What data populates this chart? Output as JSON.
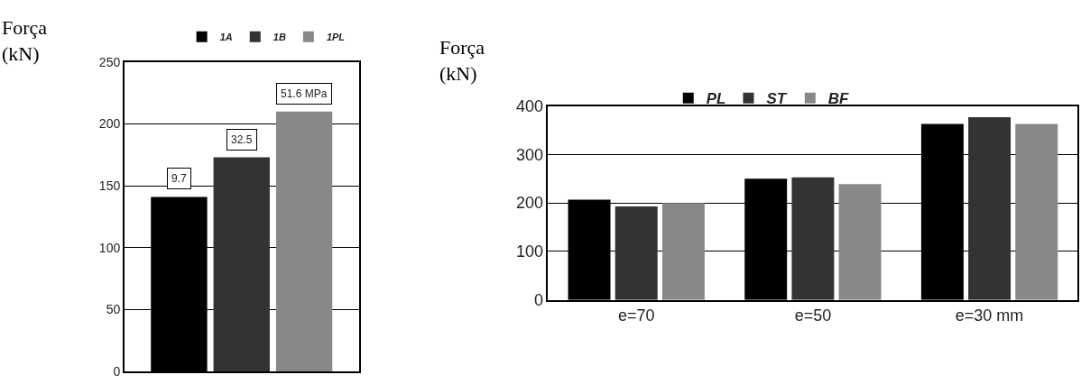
{
  "chart_data": [
    {
      "type": "bar",
      "ylabel": "Força\n(kN)",
      "categories": [
        null
      ],
      "ylim": [
        0,
        250
      ],
      "yticks": [
        0,
        50,
        100,
        150,
        200,
        250
      ],
      "grid": "y",
      "legend": "top",
      "series": [
        {
          "name": "1A",
          "color": "#000000",
          "values": [
            141
          ]
        },
        {
          "name": "1B",
          "color": "#333333",
          "values": [
            173
          ]
        },
        {
          "name": "1PL",
          "color": "#888888",
          "values": [
            210
          ]
        }
      ],
      "annotations": [
        "9.7",
        "32.5",
        "51.6 MPa"
      ]
    },
    {
      "type": "bar",
      "ylabel": "Força\n(kN)",
      "categories": [
        "e=70",
        "e=50",
        "e=30 mm"
      ],
      "ylim": [
        0,
        400
      ],
      "yticks": [
        0,
        100,
        200,
        300,
        400
      ],
      "grid": "y",
      "legend": "top",
      "series": [
        {
          "name": "PL",
          "color": "#000000",
          "values": [
            207,
            250,
            363
          ]
        },
        {
          "name": "ST",
          "color": "#333333",
          "values": [
            193,
            253,
            377
          ]
        },
        {
          "name": "BF",
          "color": "#888888",
          "values": [
            200,
            239,
            363
          ]
        }
      ]
    }
  ]
}
